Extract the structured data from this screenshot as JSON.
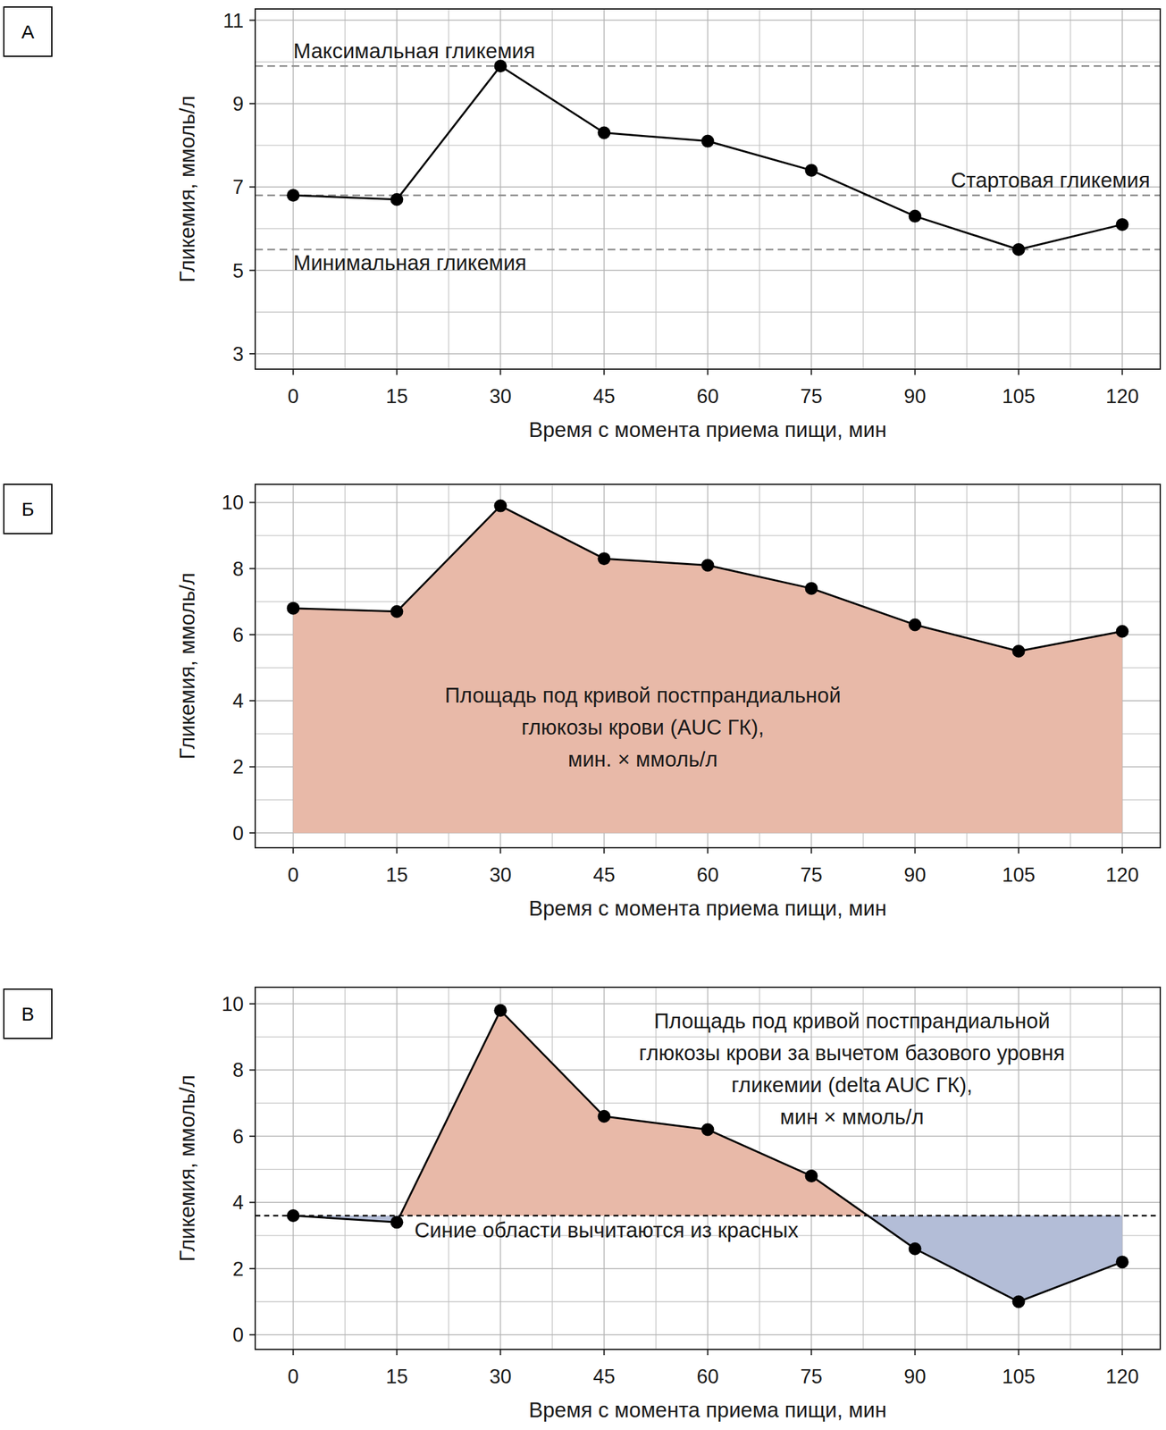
{
  "chart_data": [
    {
      "type": "line",
      "title": "А",
      "x": [
        0,
        15,
        30,
        45,
        60,
        75,
        90,
        105,
        120
      ],
      "series": [
        {
          "color": "#000000",
          "marker": "circle",
          "values": [
            6.8,
            6.7,
            9.9,
            8.3,
            8.1,
            7.4,
            6.3,
            5.5,
            6.1
          ]
        }
      ],
      "xlim": [
        -5.5,
        125.5
      ],
      "xticks": [
        0,
        15,
        30,
        45,
        60,
        75,
        90,
        105,
        120
      ],
      "ylim": [
        2.63,
        11.27
      ],
      "yticks": [
        3,
        5,
        7,
        9,
        11
      ],
      "x_label": "Время с момента приема пищи, мин",
      "y_label": "Гликемия, ммоль/л",
      "grid": true,
      "reference_lines": [
        {
          "value": 9.9,
          "label": "Максимальная гликемия"
        },
        {
          "value": 6.8,
          "label": "Стартовая гликемия"
        },
        {
          "value": 5.5,
          "label": "Минимальная гликемия"
        }
      ]
    },
    {
      "type": "area",
      "title": "Б",
      "color": "#e8b9a8",
      "x": [
        0,
        15,
        30,
        45,
        60,
        75,
        90,
        105,
        120
      ],
      "series": [
        {
          "color": "#000000",
          "marker": "circle",
          "values": [
            6.8,
            6.7,
            9.9,
            8.3,
            8.1,
            7.4,
            6.3,
            5.5,
            6.1
          ]
        }
      ],
      "xlim": [
        -5.5,
        125.5
      ],
      "xticks": [
        0,
        15,
        30,
        45,
        60,
        75,
        90,
        105,
        120
      ],
      "ylim": [
        -0.45,
        10.55
      ],
      "yticks": [
        0,
        2,
        4,
        6,
        8,
        10
      ],
      "x_label": "Время с момента приема пищи, мин",
      "y_label": "Гликемия, ммоль/л",
      "grid": true,
      "annotation": [
        "Площадь под кривой постпрандиальной",
        "глюкозы крови (AUC ГК),",
        "мин. × ммоль/л"
      ]
    },
    {
      "type": "area",
      "title": "В",
      "colors": [
        "#e8b9a8",
        "#b3bdd7"
      ],
      "x": [
        0,
        15,
        30,
        45,
        60,
        75,
        90,
        105,
        120
      ],
      "series": [
        {
          "color": "#000000",
          "marker": "circle",
          "values": [
            3.6,
            3.4,
            9.8,
            6.6,
            6.2,
            4.8,
            2.6,
            1.0,
            2.2
          ]
        }
      ],
      "xlim": [
        -5.5,
        125.5
      ],
      "xticks": [
        0,
        15,
        30,
        45,
        60,
        75,
        90,
        105,
        120
      ],
      "ylim": [
        -0.44,
        10.5
      ],
      "yticks": [
        0,
        2,
        4,
        6,
        8,
        10
      ],
      "x_label": "Время с момента приема пищи, мин",
      "y_label": "Гликемия, ммоль/л",
      "grid": true,
      "reference_lines": [
        {
          "value": 3.6,
          "label": "Синие области вычитаются из красных"
        }
      ],
      "annotation": [
        "Площадь под кривой постпрандиальной",
        "глюкозы крови за вычетом базового уровня",
        "гликемии (delta AUC ГК),",
        "мин × ммоль/л"
      ]
    }
  ]
}
